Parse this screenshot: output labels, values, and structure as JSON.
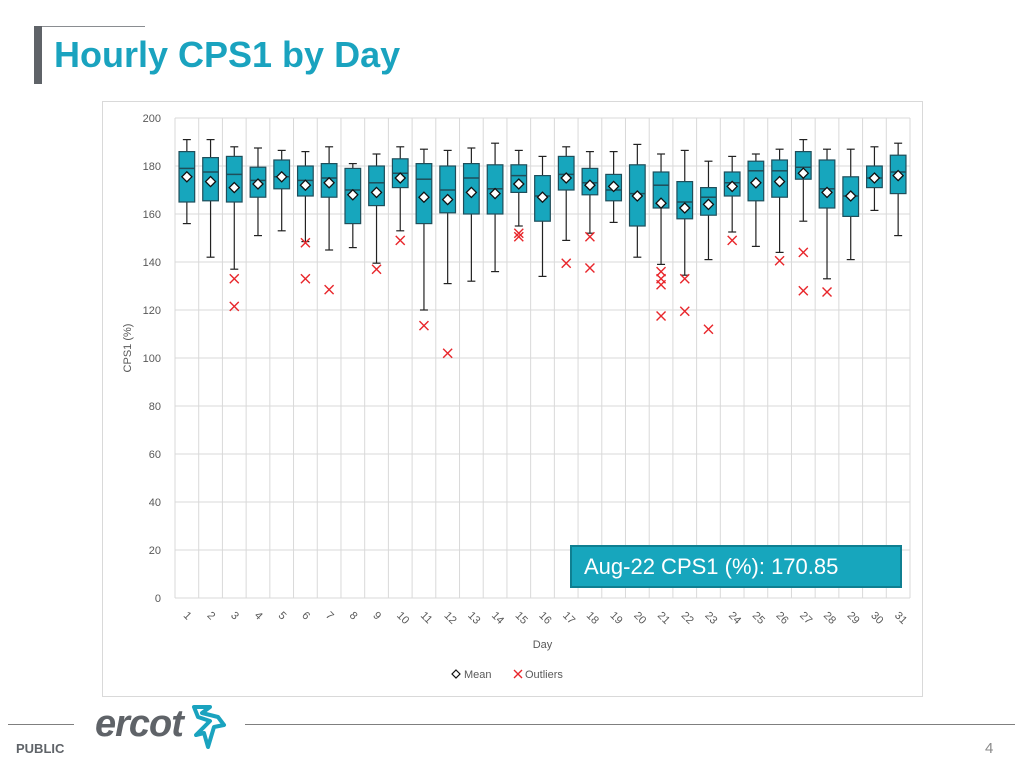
{
  "slide": {
    "title": "Hourly CPS1 by Day",
    "classification": "PUBLIC",
    "logo_text": "ercot",
    "page_number": "4",
    "callout": "Aug-22 CPS1 (%): 170.85"
  },
  "colors": {
    "title": "#1aa3bf",
    "box_fill": "#17a6bd",
    "box_stroke": "#1f4e5a",
    "outlier": "#e8262b",
    "grid": "#d9d9d9"
  },
  "chart_data": {
    "type": "boxplot",
    "title": "",
    "xlabel": "Day",
    "ylabel": "CPS1 (%)",
    "ylim": [
      0,
      200
    ],
    "yticks": [
      0,
      20,
      40,
      60,
      80,
      100,
      120,
      140,
      160,
      180,
      200
    ],
    "grid": true,
    "legend": {
      "placement": "bottom",
      "entries": [
        {
          "symbol": "diamond",
          "label": "Mean"
        },
        {
          "symbol": "x",
          "label": "Outliers"
        }
      ]
    },
    "categories": [
      "1",
      "2",
      "3",
      "4",
      "5",
      "6",
      "7",
      "8",
      "9",
      "10",
      "11",
      "12",
      "13",
      "14",
      "15",
      "16",
      "17",
      "18",
      "19",
      "20",
      "21",
      "22",
      "23",
      "24",
      "25",
      "26",
      "27",
      "28",
      "29",
      "30",
      "31"
    ],
    "boxes": [
      {
        "day": "1",
        "min": 156,
        "q1": 165,
        "median": 179,
        "q3": 186,
        "max": 191,
        "mean": 175.5,
        "outliers": []
      },
      {
        "day": "2",
        "min": 142,
        "q1": 165.5,
        "median": 177.5,
        "q3": 183.5,
        "max": 191,
        "mean": 173.5,
        "outliers": []
      },
      {
        "day": "3",
        "min": 137,
        "q1": 165,
        "median": 176.5,
        "q3": 184,
        "max": 188,
        "mean": 171,
        "outliers": [
          133,
          121.5
        ]
      },
      {
        "day": "4",
        "min": 151,
        "q1": 167,
        "median": 174,
        "q3": 179.5,
        "max": 187.5,
        "mean": 172.5,
        "outliers": []
      },
      {
        "day": "5",
        "min": 153,
        "q1": 170.5,
        "median": 175.5,
        "q3": 182.5,
        "max": 186.5,
        "mean": 175.5,
        "outliers": []
      },
      {
        "day": "6",
        "min": 148.5,
        "q1": 167.5,
        "median": 174,
        "q3": 180,
        "max": 186,
        "mean": 172,
        "outliers": [
          148,
          133
        ]
      },
      {
        "day": "7",
        "min": 145,
        "q1": 167,
        "median": 175,
        "q3": 181,
        "max": 188,
        "mean": 173,
        "outliers": [
          128.5
        ]
      },
      {
        "day": "8",
        "min": 146,
        "q1": 156,
        "median": 170,
        "q3": 179,
        "max": 181,
        "mean": 168,
        "outliers": []
      },
      {
        "day": "9",
        "min": 139.5,
        "q1": 163.5,
        "median": 173,
        "q3": 180,
        "max": 185,
        "mean": 169,
        "outliers": [
          137
        ]
      },
      {
        "day": "10",
        "min": 153,
        "q1": 171,
        "median": 177,
        "q3": 183,
        "max": 188,
        "mean": 175,
        "outliers": [
          149
        ]
      },
      {
        "day": "11",
        "min": 120,
        "q1": 156,
        "median": 174.5,
        "q3": 181,
        "max": 187,
        "mean": 167,
        "outliers": [
          113.5
        ]
      },
      {
        "day": "12",
        "min": 131,
        "q1": 160.5,
        "median": 170,
        "q3": 180,
        "max": 186.5,
        "mean": 166,
        "outliers": [
          102
        ]
      },
      {
        "day": "13",
        "min": 132,
        "q1": 160,
        "median": 175,
        "q3": 181,
        "max": 187.5,
        "mean": 169,
        "outliers": []
      },
      {
        "day": "14",
        "min": 136,
        "q1": 160,
        "median": 170.5,
        "q3": 180.5,
        "max": 189.5,
        "mean": 168.5,
        "outliers": []
      },
      {
        "day": "15",
        "min": 155,
        "q1": 169,
        "median": 176,
        "q3": 180.5,
        "max": 186.5,
        "mean": 172.5,
        "outliers": [
          152,
          150.5
        ]
      },
      {
        "day": "16",
        "min": 134,
        "q1": 157,
        "median": 167.5,
        "q3": 176,
        "max": 184,
        "mean": 167,
        "outliers": []
      },
      {
        "day": "17",
        "min": 149,
        "q1": 170,
        "median": 176.5,
        "q3": 184,
        "max": 188,
        "mean": 175,
        "outliers": [
          139.5
        ]
      },
      {
        "day": "18",
        "min": 152,
        "q1": 168,
        "median": 173,
        "q3": 179,
        "max": 186,
        "mean": 172,
        "outliers": [
          150.5,
          137.5
        ]
      },
      {
        "day": "19",
        "min": 156.5,
        "q1": 165.5,
        "median": 170,
        "q3": 176.5,
        "max": 186,
        "mean": 171.5,
        "outliers": []
      },
      {
        "day": "20",
        "min": 142,
        "q1": 155,
        "median": 168.5,
        "q3": 180.5,
        "max": 189,
        "mean": 167.5,
        "outliers": []
      },
      {
        "day": "21",
        "min": 139,
        "q1": 162.5,
        "median": 172,
        "q3": 177.5,
        "max": 185,
        "mean": 164.5,
        "outliers": [
          136,
          133,
          130.5,
          117.5
        ]
      },
      {
        "day": "22",
        "min": 134.5,
        "q1": 158,
        "median": 165,
        "q3": 173.5,
        "max": 186.5,
        "mean": 162.5,
        "outliers": [
          133,
          119.5
        ]
      },
      {
        "day": "23",
        "min": 141,
        "q1": 159.5,
        "median": 167,
        "q3": 171,
        "max": 182,
        "mean": 164,
        "outliers": [
          112
        ]
      },
      {
        "day": "24",
        "min": 152.5,
        "q1": 167.5,
        "median": 173,
        "q3": 177.5,
        "max": 184,
        "mean": 171.5,
        "outliers": [
          149
        ]
      },
      {
        "day": "25",
        "min": 146.5,
        "q1": 165.5,
        "median": 178,
        "q3": 182,
        "max": 185,
        "mean": 173,
        "outliers": []
      },
      {
        "day": "26",
        "min": 144,
        "q1": 167,
        "median": 178,
        "q3": 182.5,
        "max": 187,
        "mean": 173.5,
        "outliers": [
          140.5
        ]
      },
      {
        "day": "27",
        "min": 157,
        "q1": 174.5,
        "median": 179.5,
        "q3": 186,
        "max": 191,
        "mean": 177,
        "outliers": [
          144,
          128
        ]
      },
      {
        "day": "28",
        "min": 133,
        "q1": 162.5,
        "median": 170.5,
        "q3": 182.5,
        "max": 187,
        "mean": 169,
        "outliers": [
          127.5
        ]
      },
      {
        "day": "29",
        "min": 141,
        "q1": 159,
        "median": 167.5,
        "q3": 175.5,
        "max": 187,
        "mean": 167.5,
        "outliers": []
      },
      {
        "day": "30",
        "min": 161.5,
        "q1": 171,
        "median": 175,
        "q3": 180,
        "max": 188,
        "mean": 175,
        "outliers": []
      },
      {
        "day": "31",
        "min": 151,
        "q1": 168.5,
        "median": 177.5,
        "q3": 184.5,
        "max": 189.5,
        "mean": 176,
        "outliers": []
      }
    ]
  }
}
